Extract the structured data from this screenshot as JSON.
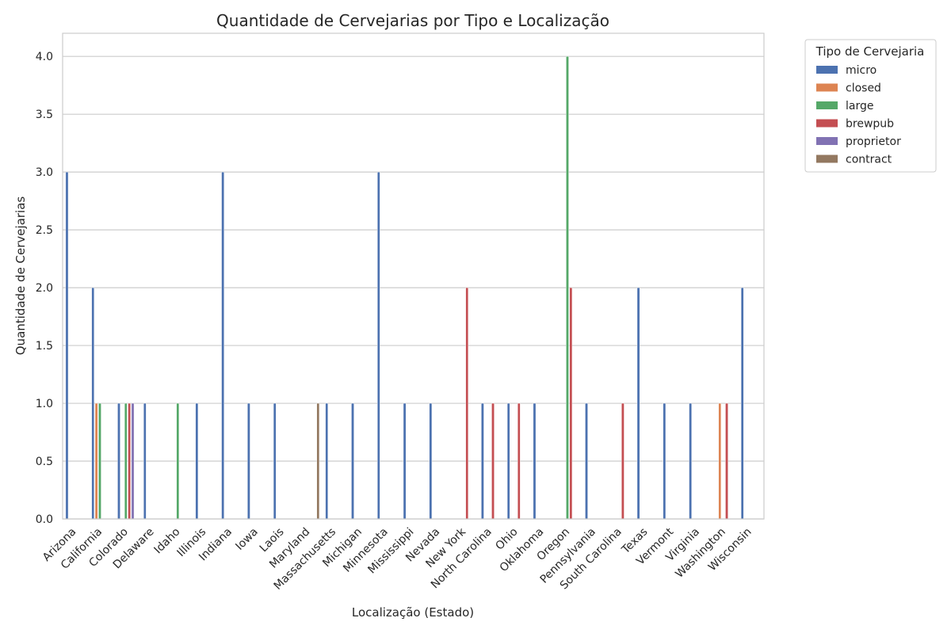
{
  "chart_data": {
    "type": "bar",
    "title": "Quantidade de Cervejarias por Tipo e Localização",
    "xlabel": "Localização (Estado)",
    "ylabel": "Quantidade de Cervejarias",
    "ylim": [
      0,
      4.2
    ],
    "yticks": [
      "0.0",
      "0.5",
      "1.0",
      "1.5",
      "2.0",
      "2.5",
      "3.0",
      "3.5",
      "4.0"
    ],
    "grid": true,
    "legend_title": "Tipo de Cervejaria",
    "legend_position": "outside-top-right",
    "categories": [
      "Arizona",
      "California",
      "Colorado",
      "Delaware",
      "Idaho",
      "Illinois",
      "Indiana",
      "Iowa",
      "Laois",
      "Maryland",
      "Massachusetts",
      "Michigan",
      "Minnesota",
      "Mississippi",
      "Nevada",
      "New York",
      "North Carolina",
      "Ohio",
      "Oklahoma",
      "Oregon",
      "Pennsylvania",
      "South Carolina",
      "Texas",
      "Vermont",
      "Virginia",
      "Washington",
      "Wisconsin"
    ],
    "series": [
      {
        "name": "micro",
        "color": "#4c72b0",
        "values": [
          3,
          2,
          1,
          1,
          0,
          1,
          3,
          1,
          1,
          0,
          1,
          1,
          3,
          1,
          1,
          0,
          1,
          1,
          1,
          0,
          1,
          0,
          2,
          1,
          1,
          0,
          2
        ]
      },
      {
        "name": "closed",
        "color": "#dd8452",
        "values": [
          0,
          1,
          0,
          0,
          0,
          0,
          0,
          0,
          0,
          0,
          0,
          0,
          0,
          0,
          0,
          0,
          0,
          0,
          0,
          0,
          0,
          0,
          0,
          0,
          0,
          1,
          0
        ]
      },
      {
        "name": "large",
        "color": "#55a868",
        "values": [
          0,
          1,
          1,
          0,
          1,
          0,
          0,
          0,
          0,
          0,
          0,
          0,
          0,
          0,
          0,
          0,
          0,
          0,
          0,
          4,
          0,
          0,
          0,
          0,
          0,
          0,
          0
        ]
      },
      {
        "name": "brewpub",
        "color": "#c44e52",
        "values": [
          0,
          0,
          1,
          0,
          0,
          0,
          0,
          0,
          0,
          0,
          0,
          0,
          0,
          0,
          0,
          2,
          1,
          1,
          0,
          2,
          0,
          1,
          0,
          0,
          0,
          1,
          0
        ]
      },
      {
        "name": "proprietor",
        "color": "#8172b3",
        "values": [
          0,
          0,
          1,
          0,
          0,
          0,
          0,
          0,
          0,
          0,
          0,
          0,
          0,
          0,
          0,
          0,
          0,
          0,
          0,
          0,
          0,
          0,
          0,
          0,
          0,
          0,
          0
        ]
      },
      {
        "name": "contract",
        "color": "#937860",
        "values": [
          0,
          0,
          0,
          0,
          0,
          0,
          0,
          0,
          0,
          1,
          0,
          0,
          0,
          0,
          0,
          0,
          0,
          0,
          0,
          0,
          0,
          0,
          0,
          0,
          0,
          0,
          0
        ]
      }
    ]
  }
}
